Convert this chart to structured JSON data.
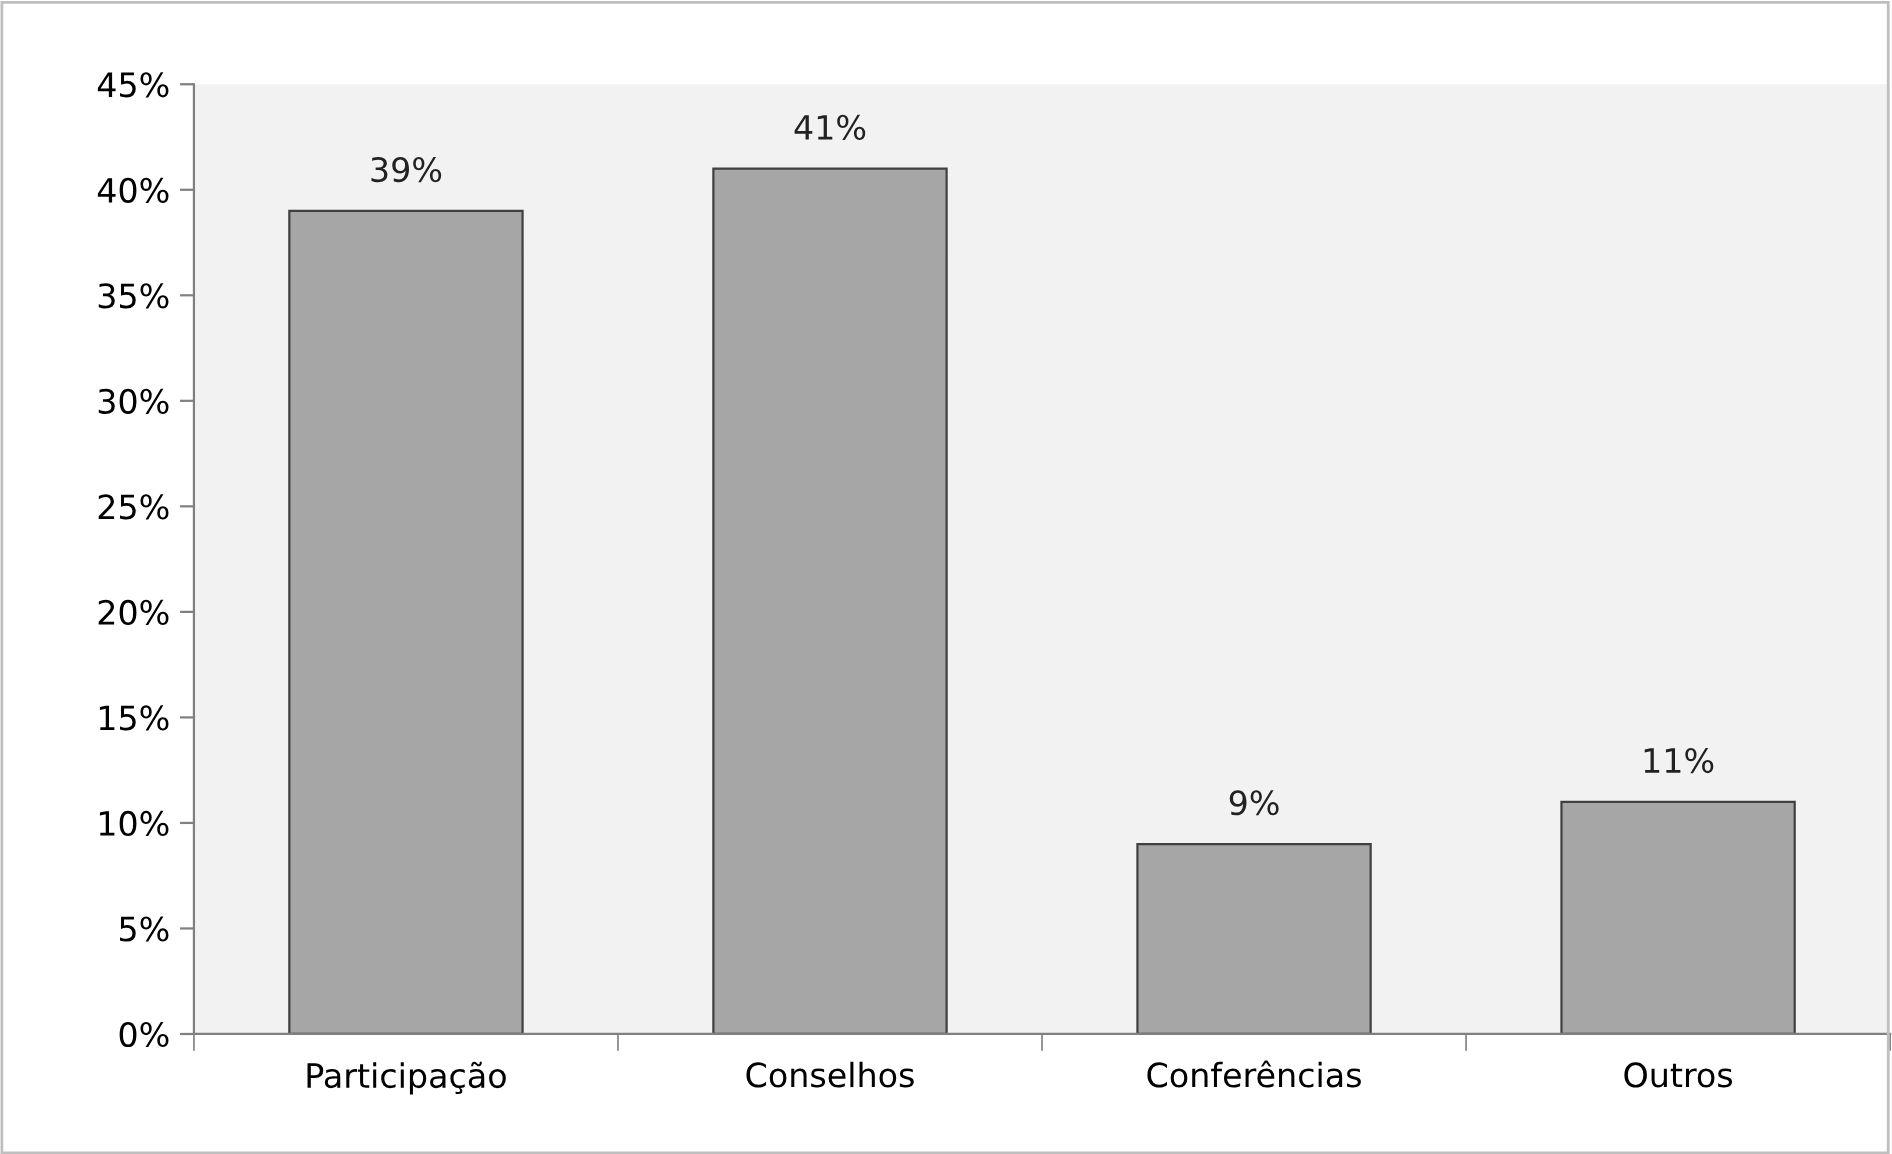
{
  "chart_data": {
    "type": "bar",
    "categories": [
      "Participação",
      "Conselhos",
      "Conferências",
      "Outros"
    ],
    "values": [
      39,
      41,
      9,
      11
    ],
    "color": "#a6a6a6",
    "value_labels": [
      "39%",
      "41%",
      "9%",
      "11%"
    ],
    "ylim": [
      0,
      45
    ],
    "yticks": [
      {
        "value": 0,
        "label": "0%"
      },
      {
        "value": 5,
        "label": "5%"
      },
      {
        "value": 10,
        "label": "10%"
      },
      {
        "value": 15,
        "label": "15%"
      },
      {
        "value": 20,
        "label": "20%"
      },
      {
        "value": 25,
        "label": "25%"
      },
      {
        "value": 30,
        "label": "30%"
      },
      {
        "value": 35,
        "label": "35%"
      },
      {
        "value": 40,
        "label": "40%"
      },
      {
        "value": 45,
        "label": "45%"
      }
    ],
    "grid": false,
    "legend": false
  }
}
